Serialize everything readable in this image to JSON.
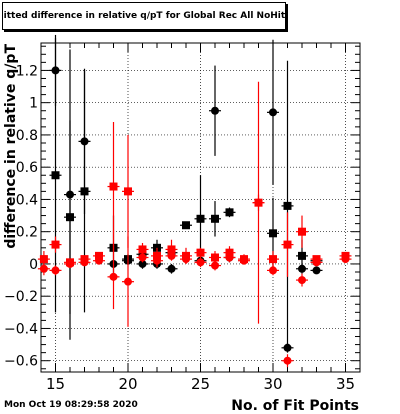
{
  "title": "Fitted difference in relative q/pT for Global Rec All NoHits",
  "timestamp": "Mon Oct 19 08:29:58 2020",
  "chart_data": {
    "type": "scatter",
    "title": "Fitted difference in relative q/pT for Global Rec All NoHits",
    "xlabel": "No. of Fit Points",
    "ylabel": "difference in relative q/pT",
    "xlim": [
      14,
      36
    ],
    "ylim": [
      -0.67,
      1.37
    ],
    "xticks": [
      15,
      20,
      25,
      30,
      35
    ],
    "yticks": [
      -0.6,
      -0.4,
      -0.2,
      0,
      0.2,
      0.4,
      0.6,
      0.8,
      1,
      1.2
    ],
    "ytick_labels": [
      "−0.6",
      "−0.4",
      "−0.2",
      "0",
      "0.2",
      "0.4",
      "0.6",
      "0.8",
      "1",
      "1.2"
    ],
    "grid": true,
    "series": [
      {
        "marker": "square",
        "color": "#000000",
        "points": [
          {
            "x": 15,
            "y": 0.55,
            "err": 0.85
          },
          {
            "x": 16,
            "y": 0.29,
            "err": 0.6
          },
          {
            "x": 17,
            "y": 0.45,
            "err": 0.75
          },
          {
            "x": 19,
            "y": 0.1,
            "err": 0.2
          },
          {
            "x": 20,
            "y": 0.03,
            "err": 0.03
          },
          {
            "x": 21,
            "y": 0.06,
            "err": 0.04
          },
          {
            "x": 22,
            "y": 0.1,
            "err": 0.05
          },
          {
            "x": 23,
            "y": 0.07,
            "err": 0.04
          },
          {
            "x": 24,
            "y": 0.24,
            "err": 0.02
          },
          {
            "x": 25,
            "y": 0.28,
            "err": 0.27
          },
          {
            "x": 26,
            "y": 0.28,
            "err": 0.11
          },
          {
            "x": 27,
            "y": 0.32,
            "err": 0.03
          },
          {
            "x": 30,
            "y": 0.19,
            "err": 0.22
          },
          {
            "x": 31,
            "y": 0.36,
            "err": 0.9
          },
          {
            "x": 32,
            "y": 0.05,
            "err": 0.1
          },
          {
            "x": 33,
            "y": 0.02,
            "err": 0.02
          }
        ]
      },
      {
        "marker": "circle",
        "color": "#000000",
        "points": [
          {
            "x": 15,
            "y": 1.2,
            "err": 0.22
          },
          {
            "x": 16,
            "y": 0.43,
            "err": 0.9
          },
          {
            "x": 17,
            "y": 0.76,
            "err": 0.45
          },
          {
            "x": 19,
            "y": 0.0,
            "err": 0.02
          },
          {
            "x": 20,
            "y": 0.02,
            "err": 0.02
          },
          {
            "x": 21,
            "y": 0.0,
            "err": 0.03
          },
          {
            "x": 22,
            "y": 0.0,
            "err": 0.03
          },
          {
            "x": 23,
            "y": -0.03,
            "err": 0.03
          },
          {
            "x": 25,
            "y": 0.02,
            "err": 0.03
          },
          {
            "x": 26,
            "y": 0.95,
            "err": 0.28
          },
          {
            "x": 27,
            "y": 0.04,
            "err": 0.03
          },
          {
            "x": 30,
            "y": 0.94,
            "err": 0.45
          },
          {
            "x": 31,
            "y": -0.52,
            "err": 0.03
          },
          {
            "x": 32,
            "y": -0.03,
            "err": 0.03
          },
          {
            "x": 33,
            "y": -0.04,
            "err": 0.02
          }
        ]
      },
      {
        "marker": "square",
        "color": "#ff0000",
        "points": [
          {
            "x": 14.2,
            "y": 0.03,
            "err": 0.05
          },
          {
            "x": 15,
            "y": 0.12,
            "err": 0.05
          },
          {
            "x": 16,
            "y": 0.01,
            "err": 0.02
          },
          {
            "x": 17,
            "y": 0.03,
            "err": 0.02
          },
          {
            "x": 18,
            "y": 0.05,
            "err": 0.02
          },
          {
            "x": 19,
            "y": 0.48,
            "err": 0.4
          },
          {
            "x": 20,
            "y": 0.45,
            "err": 0.35
          },
          {
            "x": 21,
            "y": 0.09,
            "err": 0.04
          },
          {
            "x": 22,
            "y": 0.05,
            "err": 0.05
          },
          {
            "x": 23,
            "y": 0.09,
            "err": 0.06
          },
          {
            "x": 24,
            "y": 0.05,
            "err": 0.05
          },
          {
            "x": 25,
            "y": 0.07,
            "err": 0.03
          },
          {
            "x": 26,
            "y": 0.04,
            "err": 0.04
          },
          {
            "x": 27,
            "y": 0.07,
            "err": 0.04
          },
          {
            "x": 28,
            "y": 0.03,
            "err": 0.03
          },
          {
            "x": 29,
            "y": 0.38,
            "err": 0.75
          },
          {
            "x": 30,
            "y": 0.03,
            "err": 0.05
          },
          {
            "x": 31,
            "y": 0.12,
            "err": 0.2
          },
          {
            "x": 32,
            "y": 0.2,
            "err": 0.1
          },
          {
            "x": 33,
            "y": 0.03,
            "err": 0.02
          },
          {
            "x": 35,
            "y": 0.05,
            "err": 0.02
          }
        ]
      },
      {
        "marker": "circle",
        "color": "#ff0000",
        "points": [
          {
            "x": 14.2,
            "y": -0.03,
            "err": 0.04
          },
          {
            "x": 15,
            "y": -0.04,
            "err": 0.03
          },
          {
            "x": 16,
            "y": 0.0,
            "err": 0.02
          },
          {
            "x": 17,
            "y": 0.01,
            "err": 0.02
          },
          {
            "x": 18,
            "y": 0.02,
            "err": 0.02
          },
          {
            "x": 19,
            "y": -0.08,
            "err": 0.2
          },
          {
            "x": 20,
            "y": -0.11,
            "err": 0.28
          },
          {
            "x": 21,
            "y": 0.04,
            "err": 0.03
          },
          {
            "x": 22,
            "y": 0.02,
            "err": 0.04
          },
          {
            "x": 23,
            "y": 0.05,
            "err": 0.03
          },
          {
            "x": 24,
            "y": 0.03,
            "err": 0.03
          },
          {
            "x": 25,
            "y": 0.01,
            "err": 0.03
          },
          {
            "x": 26,
            "y": -0.01,
            "err": 0.03
          },
          {
            "x": 27,
            "y": 0.04,
            "err": 0.03
          },
          {
            "x": 28,
            "y": 0.02,
            "err": 0.02
          },
          {
            "x": 29,
            "y": 0.38,
            "err": 0.05
          },
          {
            "x": 30,
            "y": -0.04,
            "err": 0.03
          },
          {
            "x": 31,
            "y": -0.6,
            "err": 0.04
          },
          {
            "x": 32,
            "y": -0.1,
            "err": 0.04
          },
          {
            "x": 33,
            "y": 0.01,
            "err": 0.02
          },
          {
            "x": 35,
            "y": 0.03,
            "err": 0.02
          }
        ]
      }
    ]
  }
}
